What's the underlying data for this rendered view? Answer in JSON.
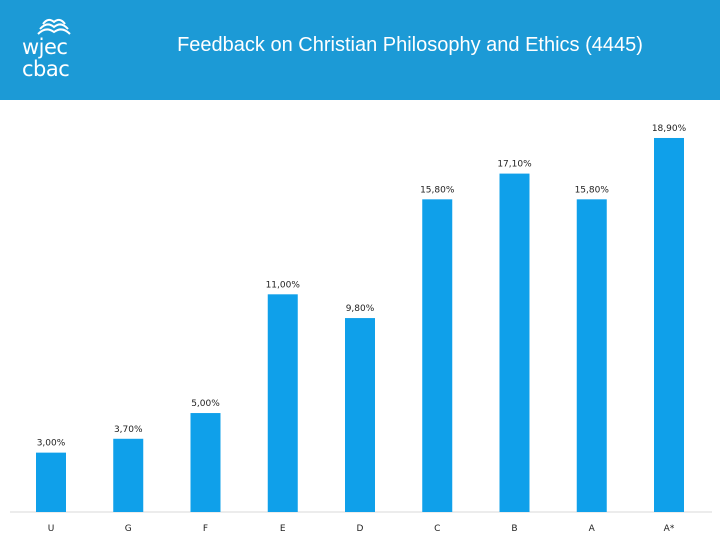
{
  "header": {
    "title": "Feedback on Christian Philosophy and Ethics (4445)",
    "logo_lines": [
      "wjec",
      "cbac"
    ],
    "background": "#1c9ad6"
  },
  "chart_data": {
    "type": "bar",
    "title": "Feedback on Christian Philosophy and Ethics (4445)",
    "categories": [
      "U",
      "G",
      "F",
      "E",
      "D",
      "C",
      "B",
      "A",
      "A*"
    ],
    "values": [
      3.0,
      3.7,
      5.0,
      11.0,
      9.8,
      15.8,
      17.1,
      15.8,
      18.9
    ],
    "value_labels": [
      "3,00%",
      "3,70%",
      "5,00%",
      "11,00%",
      "9,80%",
      "15,80%",
      "17,10%",
      "15,80%",
      "18,90%"
    ],
    "bar_color": "#0fa0ea",
    "ylim": [
      0,
      19
    ],
    "grid": false,
    "legend": "none"
  }
}
